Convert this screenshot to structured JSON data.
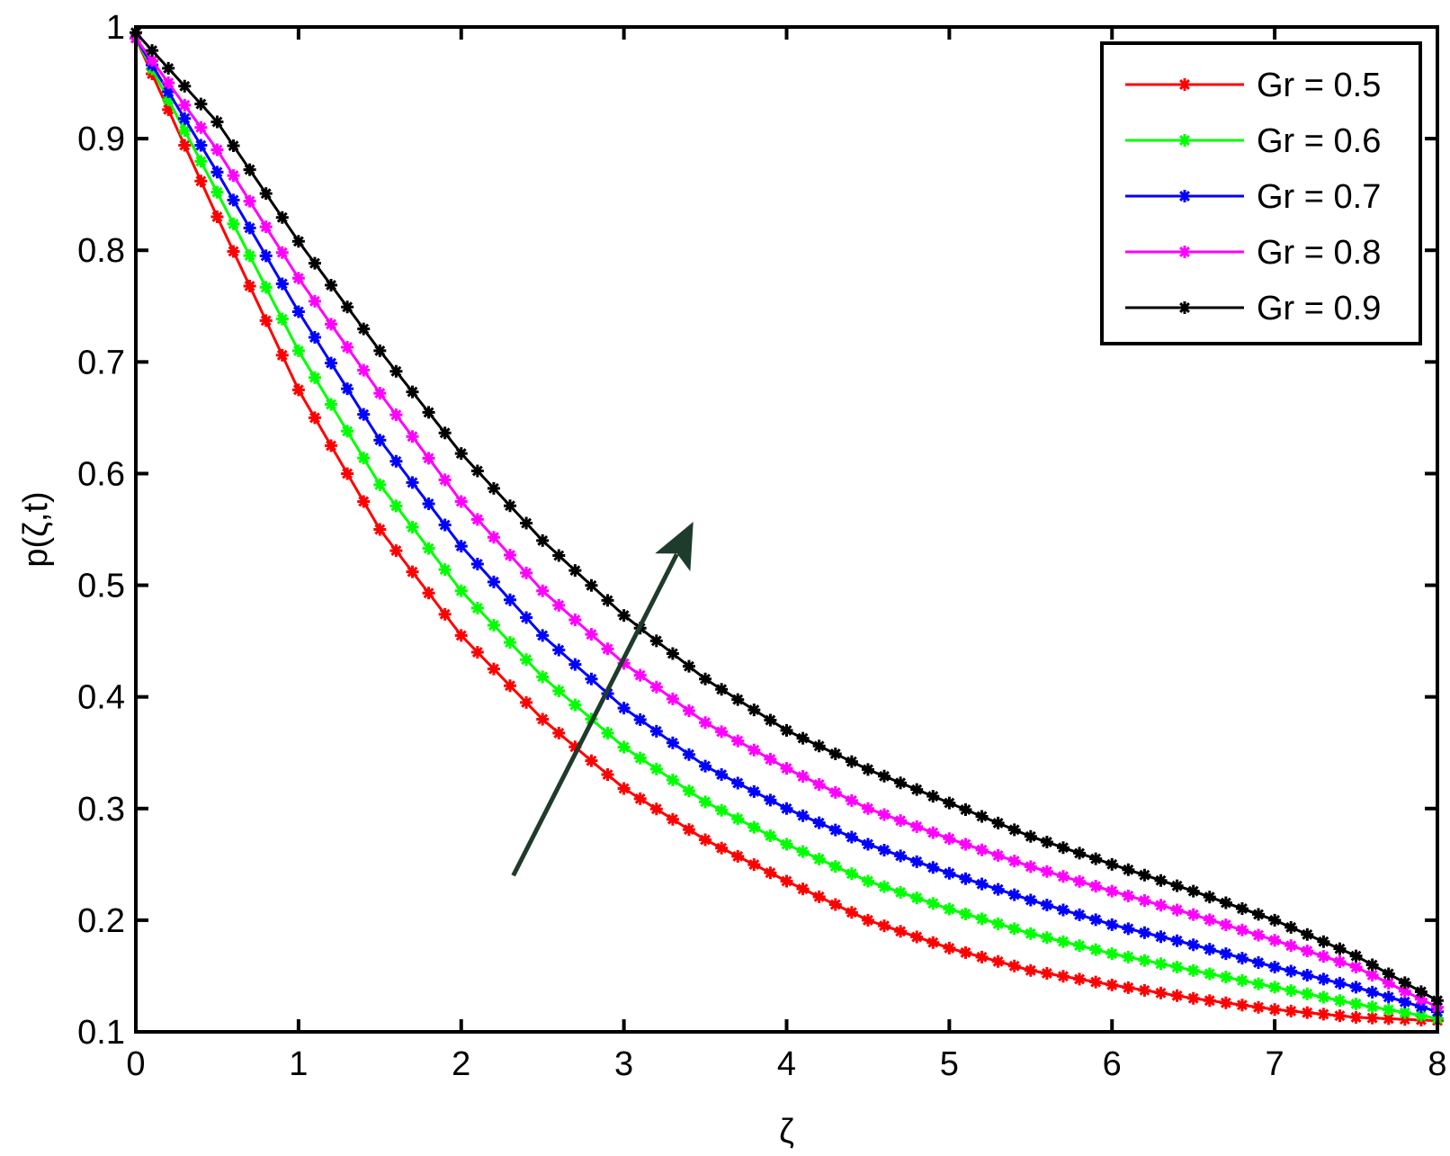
{
  "chart_data": {
    "type": "line",
    "title": "",
    "xlabel": "ζ",
    "ylabel": "p(ζ,t)",
    "xlim": [
      0,
      8
    ],
    "ylim": [
      0.1,
      1
    ],
    "xticks": [
      0,
      1,
      2,
      3,
      4,
      5,
      6,
      7,
      8
    ],
    "yticks": [
      0.1,
      0.2,
      0.3,
      0.4,
      0.5,
      0.6,
      0.7,
      0.8,
      0.9,
      1
    ],
    "xtick_labels": [
      "0",
      "1",
      "2",
      "3",
      "4",
      "5",
      "6",
      "7",
      "8"
    ],
    "ytick_labels": [
      "0.1",
      "0.2",
      "0.3",
      "0.4",
      "0.5",
      "0.6",
      "0.7",
      "0.8",
      "0.9",
      "1"
    ],
    "grid": false,
    "legend_position": "top-right",
    "marker": "star",
    "x": [
      0,
      0.5,
      1,
      1.5,
      2,
      2.5,
      3,
      3.5,
      4,
      4.5,
      5,
      5.5,
      6,
      6.5,
      7,
      7.5,
      8
    ],
    "series": [
      {
        "name": "Gr = 0.5",
        "color": "#ff0000",
        "values": [
          0.99,
          0.83,
          0.675,
          0.55,
          0.455,
          0.38,
          0.318,
          0.272,
          0.235,
          0.2,
          0.175,
          0.155,
          0.142,
          0.13,
          0.12,
          0.113,
          0.11
        ]
      },
      {
        "name": "Gr = 0.6",
        "color": "#00ff00",
        "values": [
          0.99,
          0.852,
          0.71,
          0.59,
          0.495,
          0.418,
          0.355,
          0.306,
          0.268,
          0.235,
          0.21,
          0.188,
          0.17,
          0.155,
          0.14,
          0.125,
          0.112
        ]
      },
      {
        "name": "Gr = 0.7",
        "color": "#0000ff",
        "values": [
          0.99,
          0.87,
          0.745,
          0.63,
          0.535,
          0.455,
          0.39,
          0.338,
          0.3,
          0.268,
          0.242,
          0.218,
          0.196,
          0.178,
          0.158,
          0.14,
          0.118
        ]
      },
      {
        "name": "Gr = 0.8",
        "color": "#ff00ff",
        "values": [
          0.99,
          0.89,
          0.775,
          0.672,
          0.575,
          0.495,
          0.43,
          0.377,
          0.336,
          0.3,
          0.273,
          0.248,
          0.226,
          0.205,
          0.182,
          0.158,
          0.122
        ]
      },
      {
        "name": "Gr = 0.9",
        "color": "#000000",
        "values": [
          0.995,
          0.915,
          0.808,
          0.71,
          0.618,
          0.54,
          0.473,
          0.416,
          0.37,
          0.335,
          0.305,
          0.275,
          0.25,
          0.226,
          0.2,
          0.168,
          0.128
        ]
      }
    ],
    "annotations": [
      {
        "type": "arrow",
        "color": "#1f3b2c",
        "from": {
          "x": 2.32,
          "y": 0.24
        },
        "to": {
          "x": 3.42,
          "y": 0.555
        }
      }
    ]
  }
}
